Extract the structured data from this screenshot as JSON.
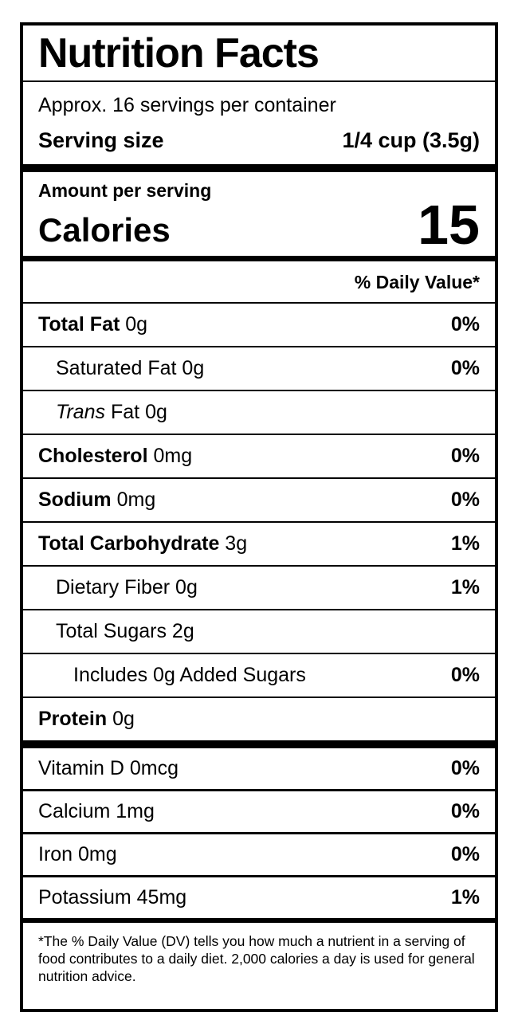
{
  "header": {
    "title": "Nutrition Facts",
    "servings_per_container": "Approx. 16 servings per container",
    "serving_size_label": "Serving size",
    "serving_size_value": "1/4 cup (3.5g)"
  },
  "calories": {
    "amount_per_serving_label": "Amount per serving",
    "label": "Calories",
    "value": "15"
  },
  "daily_value_header": "% Daily Value*",
  "nutrients": [
    {
      "name": "Total Fat",
      "rest": " 0g",
      "dv": "0%",
      "style": "bold",
      "indent": 0
    },
    {
      "name": "Saturated Fat",
      "rest": " 0g",
      "dv": "0%",
      "style": "regular",
      "indent": 1
    },
    {
      "name": "Trans",
      "rest": " Fat 0g",
      "dv": "",
      "style": "italic",
      "indent": 1
    },
    {
      "name": "Cholesterol",
      "rest": " 0mg",
      "dv": "0%",
      "style": "bold",
      "indent": 0
    },
    {
      "name": "Sodium",
      "rest": " 0mg",
      "dv": "0%",
      "style": "bold",
      "indent": 0
    },
    {
      "name": "Total Carbohydrate",
      "rest": " 3g",
      "dv": "1%",
      "style": "bold",
      "indent": 0
    },
    {
      "name": "Dietary Fiber",
      "rest": " 0g",
      "dv": "1%",
      "style": "regular",
      "indent": 1
    },
    {
      "name": "Total Sugars",
      "rest": " 2g",
      "dv": "",
      "style": "regular",
      "indent": 1
    },
    {
      "name": "Includes 0g Added Sugars",
      "rest": "",
      "dv": "0%",
      "style": "regular",
      "indent": 2
    },
    {
      "name": "Protein",
      "rest": " 0g",
      "dv": "",
      "style": "bold",
      "indent": 0
    }
  ],
  "vitamins": [
    {
      "name": "Vitamin D 0mcg",
      "dv": "0%"
    },
    {
      "name": "Calcium 1mg",
      "dv": "0%"
    },
    {
      "name": "Iron 0mg",
      "dv": "0%"
    },
    {
      "name": "Potassium 45mg",
      "dv": "1%"
    }
  ],
  "footnote": "*The % Daily Value (DV) tells you how much a nutrient in a serving of food contributes to a daily diet. 2,000 calories a day is used for general nutrition advice.",
  "colors": {
    "text": "#000000",
    "background": "#ffffff",
    "border": "#000000"
  }
}
